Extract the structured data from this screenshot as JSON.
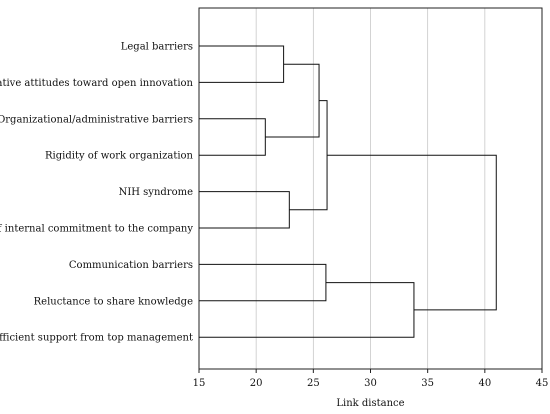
{
  "chart_data": {
    "type": "dendrogram",
    "orientation": "horizontal",
    "xlabel": "Link distance",
    "xlim": [
      15,
      45
    ],
    "xticks": [
      15,
      20,
      25,
      30,
      35,
      40,
      45
    ],
    "grid": "vertical",
    "leaves": [
      "Legal barriers",
      "Negative attitudes toward open innovation",
      "Organizational/administrative barriers",
      "Rigidity of work organization",
      "NIH syndrome",
      "Lack of internal commitment to the company",
      "Communication barriers",
      "Reluctance to share knowledge",
      "Insufficient support from top management"
    ],
    "merges": [
      {
        "a": "L0",
        "b": "L1",
        "distance": 22.4
      },
      {
        "a": "L2",
        "b": "L3",
        "distance": 20.8
      },
      {
        "a": "M0",
        "b": "M1",
        "distance": 25.5
      },
      {
        "a": "L4",
        "b": "L5",
        "distance": 22.9
      },
      {
        "a": "M2",
        "b": "M3",
        "distance": 26.2
      },
      {
        "a": "L6",
        "b": "L7",
        "distance": 26.1
      },
      {
        "a": "M5",
        "b": "L8",
        "distance": 33.8
      },
      {
        "a": "M4",
        "b": "M6",
        "distance": 41.0
      }
    ],
    "leaf_start": 15
  }
}
